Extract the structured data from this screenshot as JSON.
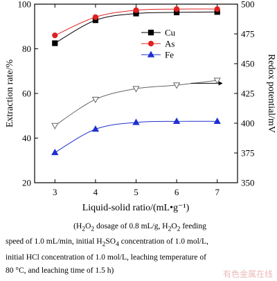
{
  "chart_data": {
    "type": "line",
    "xlabel": "Liquid-solid ratio/(mL•g⁻¹)",
    "ylabel_left": "Extraction rate/%",
    "ylabel_right": "Redox potential/mV",
    "x": [
      3,
      4,
      5,
      6,
      7
    ],
    "xlim": [
      2.5,
      7.5
    ],
    "ylim_left": [
      20,
      100
    ],
    "ylim_right": [
      350,
      500
    ],
    "yticks_left": [
      20,
      40,
      60,
      80,
      100
    ],
    "yticks_right": [
      350,
      375,
      400,
      425,
      450,
      475,
      500
    ],
    "legend_position": "top-right",
    "series": [
      {
        "name": "Cu",
        "axis": "left",
        "color": "#000000",
        "marker": "square",
        "values": [
          82.5,
          92.8,
          95.8,
          96.3,
          96.5
        ]
      },
      {
        "name": "As",
        "axis": "left",
        "color": "#e02020",
        "marker": "circle",
        "values": [
          86.0,
          94.2,
          97.3,
          97.8,
          97.8
        ]
      },
      {
        "name": "Fe",
        "axis": "left",
        "color": "#1f2fd0",
        "marker": "triangle",
        "values": [
          33.5,
          44.0,
          47.0,
          47.5,
          47.5
        ]
      },
      {
        "name": "",
        "axis": "right",
        "color": "#666666",
        "marker": "open-triangle-down",
        "values": [
          398,
          420,
          429,
          432,
          436
        ]
      }
    ],
    "arrow_annotation": {
      "direction": "right",
      "points_to_axis": "right"
    }
  },
  "caption": {
    "line1_prefix": "(H",
    "sub1": "2",
    "line1_mid1": "O",
    "sub2": "2",
    "line1_mid2": " dosage of 0.8 mL/g, H",
    "sub3": "2",
    "line1_mid3": "O",
    "sub4": "2",
    "line1_suffix": " feeding",
    "line2_prefix": "speed of 1.0 mL/min, initial H",
    "sub5": "2",
    "line2_mid": "SO",
    "sub6": "4",
    "line2_suffix": " concentration of 1.0 mol/L,",
    "line3": "initial HCl concentration of 1.0 mol/L, leaching temperature of",
    "line4": "80 °C, and leaching time of 1.5 h)"
  },
  "watermark": "有色金属在线"
}
